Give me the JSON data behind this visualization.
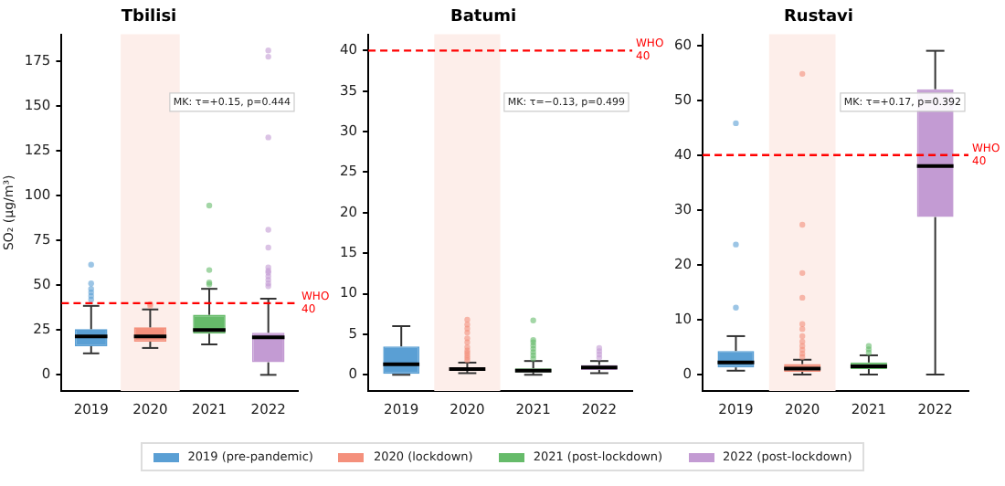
{
  "chart_data": [
    {
      "type": "box",
      "title": "Tbilisi",
      "ylabel": "SO₂ (µg/m³)",
      "categories": [
        "2019",
        "2020",
        "2021",
        "2022"
      ],
      "legend": "bottom",
      "series": [
        {
          "name": "2019 (pre-pandemic)",
          "color": "#5a9fd4",
          "boxes": [
            {
              "low": 12,
              "q1": 16,
              "median": 21.5,
              "q3": 25.5,
              "high": 38.5,
              "outliers": [
                42,
                44,
                46,
                48,
                51,
                61.5
              ]
            },
            null,
            null,
            null
          ]
        },
        {
          "name": "2020 (lockdown)",
          "color": "#f4907c",
          "boxes": [
            null,
            {
              "low": 15,
              "q1": 18.5,
              "median": 21.5,
              "q3": 26.5,
              "high": 36.5,
              "outliers": [
                38.5,
                39.5
              ]
            },
            null,
            null
          ]
        },
        {
          "name": "2021 (post-lockdown)",
          "color": "#66bb6a",
          "boxes": [
            null,
            null,
            {
              "low": 17,
              "q1": 23,
              "median": 25,
              "q3": 33.5,
              "high": 48,
              "outliers": [
                50.5,
                51.5,
                58.5,
                94.5
              ]
            },
            null
          ]
        },
        {
          "name": "2022 (post-lockdown)",
          "color": "#c39bd3",
          "boxes": [
            null,
            null,
            null,
            {
              "low": 0,
              "q1": 7,
              "median": 21,
              "q3": 23.5,
              "high": 42.5,
              "outliers": [
                49.5,
                51,
                53,
                55,
                57,
                58,
                60,
                71,
                81,
                132.5,
                177.5,
                181
              ]
            }
          ]
        }
      ],
      "ylim": [
        -9,
        190
      ],
      "yticks": [
        0,
        25,
        50,
        75,
        100,
        125,
        150,
        175
      ],
      "bands": [
        {
          "axis": "x",
          "from": "2020",
          "to": "2020",
          "color": "#fdeeea"
        }
      ],
      "ref_lines": [
        {
          "axis": "y",
          "value": 40,
          "label": "WHO 40",
          "color": "#ff0000",
          "line_style": "dashed"
        }
      ],
      "annotations": [
        "MK: τ=+0.15, p=0.444"
      ]
    },
    {
      "type": "box",
      "title": "Batumi",
      "categories": [
        "2019",
        "2020",
        "2021",
        "2022"
      ],
      "series": [
        {
          "color": "#5a9fd4",
          "boxes": [
            {
              "low": 0,
              "q1": 0,
              "median": 1.3,
              "q3": 3.5,
              "high": 6
            },
            null,
            null,
            null
          ]
        },
        {
          "color": "#f4907c",
          "boxes": [
            null,
            {
              "low": 0.2,
              "q1": 0.5,
              "median": 0.7,
              "q3": 0.9,
              "high": 1.5,
              "outliers": [
                1.8,
                2.1,
                2.4,
                2.7,
                3,
                3.4,
                4,
                4.5,
                5.2,
                5.7,
                6.2,
                6.8
              ]
            },
            null,
            null
          ]
        },
        {
          "color": "#66bb6a",
          "boxes": [
            null,
            null,
            {
              "low": 0,
              "q1": 0.3,
              "median": 0.5,
              "q3": 0.8,
              "high": 1.7,
              "outliers": [
                2,
                2.4,
                2.8,
                3.2,
                3.6,
                4,
                4.3,
                6.7
              ]
            },
            null
          ]
        },
        {
          "color": "#c39bd3",
          "boxes": [
            null,
            null,
            null,
            {
              "low": 0.2,
              "q1": 0.6,
              "median": 0.9,
              "q3": 1.2,
              "high": 1.7,
              "outliers": [
                2.1,
                2.5,
                2.9,
                3.3
              ]
            }
          ]
        }
      ],
      "ylim": [
        -2,
        42
      ],
      "yticks": [
        0,
        5,
        10,
        15,
        20,
        25,
        30,
        35,
        40
      ],
      "bands": [
        {
          "axis": "x",
          "from": "2020",
          "to": "2020",
          "color": "#fdeeea"
        }
      ],
      "ref_lines": [
        {
          "axis": "y",
          "value": 40,
          "label": "WHO 40",
          "color": "#ff0000",
          "line_style": "dashed"
        }
      ],
      "annotations": [
        "MK: τ=−0.13, p=0.499"
      ]
    },
    {
      "type": "box",
      "title": "Rustavi",
      "categories": [
        "2019",
        "2020",
        "2021",
        "2022"
      ],
      "series": [
        {
          "color": "#5a9fd4",
          "boxes": [
            {
              "low": 0.7,
              "q1": 1.3,
              "median": 2.2,
              "q3": 4.3,
              "high": 7,
              "outliers": [
                12.2,
                23.7,
                45.8
              ]
            },
            null,
            null,
            null
          ]
        },
        {
          "color": "#f4907c",
          "boxes": [
            null,
            {
              "low": 0,
              "q1": 0.5,
              "median": 1.1,
              "q3": 1.9,
              "high": 2.7,
              "outliers": [
                3.2,
                3.8,
                4.5,
                5.2,
                6,
                7,
                8.3,
                9.2,
                14,
                18.5,
                27.3,
                54.8
              ]
            },
            null,
            null
          ]
        },
        {
          "color": "#66bb6a",
          "boxes": [
            null,
            null,
            {
              "low": 0,
              "q1": 1,
              "median": 1.5,
              "q3": 2.2,
              "high": 3.5,
              "outliers": [
                4,
                4.6,
                5.2
              ]
            },
            null
          ]
        },
        {
          "color": "#c39bd3",
          "boxes": [
            null,
            null,
            null,
            {
              "low": 0,
              "q1": 28.7,
              "median": 38,
              "q3": 52,
              "high": 59
            }
          ]
        }
      ],
      "ylim": [
        -3,
        62
      ],
      "yticks": [
        0,
        10,
        20,
        30,
        40,
        50,
        60
      ],
      "bands": [
        {
          "axis": "x",
          "from": "2020",
          "to": "2020",
          "color": "#fdeeea"
        }
      ],
      "ref_lines": [
        {
          "axis": "y",
          "value": 40,
          "label": "WHO 40",
          "color": "#ff0000",
          "line_style": "dashed"
        }
      ],
      "annotations": [
        "MK: τ=+0.17, p=0.392"
      ]
    }
  ]
}
